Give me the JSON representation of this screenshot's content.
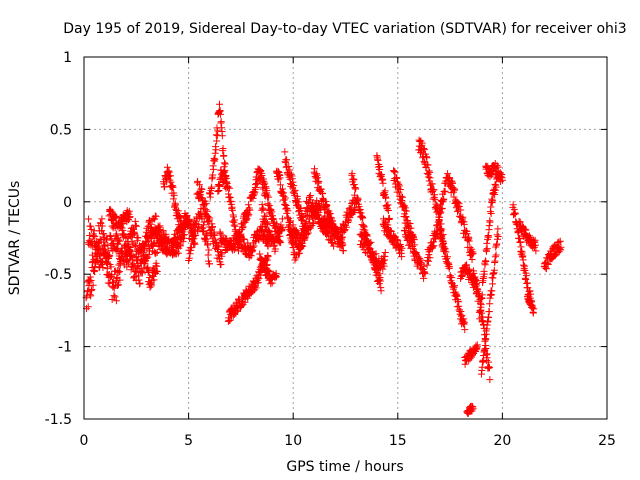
{
  "chart_data": {
    "type": "scatter",
    "title": "Day 195 of 2019, Sidereal Day-to-day VTEC variation (SDTVAR) for receiver ohi3",
    "xlabel": "GPS time / hours",
    "ylabel": "SDTVAR / TECUs",
    "xlim": [
      0,
      25
    ],
    "ylim": [
      -1.5,
      1
    ],
    "xticks": [
      0,
      5,
      10,
      15,
      20,
      25
    ],
    "xtick_labels": [
      "0",
      "5",
      "10",
      "15",
      "20",
      "25"
    ],
    "yticks": [
      1,
      0.5,
      0,
      -0.5,
      -1,
      -1.5
    ],
    "ytick_labels": [
      "1",
      "0.5",
      "0",
      "-0.5",
      "-1",
      "-1.5"
    ],
    "grid": true,
    "marker": "+",
    "color": "#ff0000",
    "series": [
      {
        "name": "SDTVAR",
        "arcs": [
          {
            "t0": 0.1,
            "t1": 1.8,
            "y": [
              -0.7,
              -0.6,
              -0.45,
              -0.3,
              -0.2,
              -0.35,
              -0.5,
              -0.6,
              -0.55,
              -0.4
            ],
            "jitter": 0.12
          },
          {
            "t0": 0.2,
            "t1": 2.5,
            "y": [
              -0.2,
              -0.3,
              -0.4,
              -0.35,
              -0.25,
              -0.3,
              -0.4,
              -0.3,
              -0.2
            ],
            "jitter": 0.1
          },
          {
            "t0": 1.2,
            "t1": 2.2,
            "y": [
              -0.08,
              -0.12,
              -0.15,
              -0.1,
              -0.1
            ],
            "jitter": 0.04
          },
          {
            "t0": 1.8,
            "t1": 3.5,
            "y": [
              -0.2,
              -0.35,
              -0.45,
              -0.5,
              -0.35,
              -0.25,
              -0.3
            ],
            "jitter": 0.08
          },
          {
            "t0": 2.5,
            "t1": 4.0,
            "y": [
              -0.3,
              -0.35,
              -0.2,
              -0.15,
              -0.25,
              -0.3
            ],
            "jitter": 0.07
          },
          {
            "t0": 3.0,
            "t1": 3.5,
            "y": [
              -0.45,
              -0.55,
              -0.5,
              -0.45
            ],
            "jitter": 0.05
          },
          {
            "t0": 3.5,
            "t1": 4.8,
            "y": [
              -0.25,
              -0.3,
              -0.3,
              -0.35,
              -0.3,
              -0.2
            ],
            "jitter": 0.05
          },
          {
            "t0": 3.8,
            "t1": 5.0,
            "y": [
              0.1,
              0.2,
              0.1,
              -0.05,
              -0.15,
              -0.2,
              -0.1
            ],
            "jitter": 0.05
          },
          {
            "t0": 4.2,
            "t1": 5.3,
            "y": [
              -0.3,
              -0.25,
              -0.2,
              -0.1,
              -0.15,
              -0.3
            ],
            "jitter": 0.05
          },
          {
            "t0": 5.0,
            "t1": 6.0,
            "y": [
              -0.35,
              -0.2,
              -0.15,
              -0.1,
              -0.2,
              -0.4
            ],
            "jitter": 0.07
          },
          {
            "t0": 5.4,
            "t1": 6.6,
            "y": [
              0.1,
              0.05,
              -0.05,
              -0.15,
              -0.25,
              -0.35,
              -0.4
            ],
            "jitter": 0.06
          },
          {
            "t0": 6.0,
            "t1": 6.8,
            "y": [
              0.05,
              0.15,
              0.3,
              0.45,
              0.65,
              0.5,
              0.3,
              0.15
            ],
            "jitter": 0.05
          },
          {
            "t0": 6.4,
            "t1": 7.4,
            "y": [
              0.05,
              0.2,
              0.15,
              0.1,
              -0.05,
              -0.2,
              -0.3
            ],
            "jitter": 0.05
          },
          {
            "t0": 6.5,
            "t1": 8.8,
            "y": [
              -0.25,
              -0.3,
              -0.3,
              -0.25,
              -0.3,
              -0.35,
              -0.25,
              -0.2,
              -0.3
            ],
            "jitter": 0.05
          },
          {
            "t0": 6.9,
            "t1": 8.8,
            "y": [
              -0.8,
              -0.75,
              -0.7,
              -0.65,
              -0.6,
              -0.55,
              -0.45,
              -0.4
            ],
            "jitter": 0.04
          },
          {
            "t0": 7.4,
            "t1": 8.2,
            "y": [
              -0.25,
              -0.15,
              -0.1,
              -0.05,
              0.05,
              0.1
            ],
            "jitter": 0.04
          },
          {
            "t0": 8.2,
            "t1": 9.4,
            "y": [
              0.15,
              0.2,
              0.1,
              0.0,
              -0.1,
              -0.2,
              -0.25
            ],
            "jitter": 0.05
          },
          {
            "t0": 8.5,
            "t1": 9.5,
            "y": [
              -0.05,
              -0.15,
              -0.25,
              -0.3,
              -0.25,
              -0.15
            ],
            "jitter": 0.05
          },
          {
            "t0": 8.4,
            "t1": 9.2,
            "y": [
              -0.4,
              -0.45,
              -0.5,
              -0.55,
              -0.5
            ],
            "jitter": 0.04
          },
          {
            "t0": 9.2,
            "t1": 10.0,
            "y": [
              0.2,
              0.15,
              0.05,
              -0.05,
              -0.2,
              -0.3
            ],
            "jitter": 0.05
          },
          {
            "t0": 9.6,
            "t1": 10.6,
            "y": [
              0.3,
              0.2,
              0.1,
              0.0,
              -0.1,
              -0.2
            ],
            "jitter": 0.05
          },
          {
            "t0": 9.8,
            "t1": 10.6,
            "y": [
              -0.15,
              -0.2,
              -0.25,
              -0.3,
              -0.2
            ],
            "jitter": 0.04
          },
          {
            "t0": 10.0,
            "t1": 12.0,
            "y": [
              -0.35,
              -0.3,
              -0.2,
              -0.1,
              -0.05,
              -0.15,
              -0.2,
              -0.25
            ],
            "jitter": 0.07
          },
          {
            "t0": 10.6,
            "t1": 11.8,
            "y": [
              -0.05,
              0.0,
              -0.05,
              -0.1,
              -0.15,
              -0.2,
              -0.1
            ],
            "jitter": 0.05
          },
          {
            "t0": 11.0,
            "t1": 12.4,
            "y": [
              0.2,
              0.1,
              0.0,
              -0.1,
              -0.2,
              -0.25,
              -0.3
            ],
            "jitter": 0.05
          },
          {
            "t0": 12.0,
            "t1": 13.0,
            "y": [
              -0.2,
              -0.25,
              -0.2,
              -0.1,
              -0.05,
              0.0
            ],
            "jitter": 0.05
          },
          {
            "t0": 12.8,
            "t1": 14.2,
            "y": [
              0.2,
              0.05,
              -0.05,
              -0.15,
              -0.25,
              -0.3,
              -0.4,
              -0.5,
              -0.6
            ],
            "jitter": 0.05
          },
          {
            "t0": 13.2,
            "t1": 14.4,
            "y": [
              -0.25,
              -0.3,
              -0.35,
              -0.4,
              -0.45,
              -0.4
            ],
            "jitter": 0.05
          },
          {
            "t0": 14.0,
            "t1": 14.6,
            "y": [
              0.3,
              0.2,
              0.1,
              0.0,
              -0.1
            ],
            "jitter": 0.04
          },
          {
            "t0": 14.3,
            "t1": 15.2,
            "y": [
              -0.15,
              -0.2,
              -0.25,
              -0.3,
              -0.35
            ],
            "jitter": 0.04
          },
          {
            "t0": 14.8,
            "t1": 15.8,
            "y": [
              0.2,
              0.1,
              0.0,
              -0.1,
              -0.2,
              -0.3
            ],
            "jitter": 0.05
          },
          {
            "t0": 15.3,
            "t1": 16.3,
            "y": [
              -0.15,
              -0.25,
              -0.3,
              -0.4,
              -0.45,
              -0.5
            ],
            "jitter": 0.05
          },
          {
            "t0": 16.0,
            "t1": 17.2,
            "y": [
              0.4,
              0.35,
              0.25,
              0.1,
              0.0,
              -0.15,
              -0.3
            ],
            "jitter": 0.05
          },
          {
            "t0": 16.4,
            "t1": 17.6,
            "y": [
              -0.4,
              -0.3,
              -0.2,
              0.0,
              0.15,
              0.1
            ],
            "jitter": 0.05
          },
          {
            "t0": 17.0,
            "t1": 18.2,
            "y": [
              -0.2,
              -0.3,
              -0.4,
              -0.5,
              -0.6,
              -0.7,
              -0.8,
              -0.85
            ],
            "jitter": 0.04
          },
          {
            "t0": 17.6,
            "t1": 18.6,
            "y": [
              0.1,
              0.0,
              -0.1,
              -0.2,
              -0.3,
              -0.4
            ],
            "jitter": 0.05
          },
          {
            "t0": 18.0,
            "t1": 18.8,
            "y": [
              -0.5,
              -0.45,
              -0.5,
              -0.55,
              -0.6
            ],
            "jitter": 0.04
          },
          {
            "t0": 18.2,
            "t1": 18.8,
            "y": [
              -1.1,
              -1.05,
              -1.0
            ],
            "jitter": 0.03
          },
          {
            "t0": 18.3,
            "t1": 18.6,
            "y": [
              -1.45,
              -1.42
            ],
            "jitter": 0.02
          },
          {
            "t0": 18.6,
            "t1": 19.4,
            "y": [
              -0.5,
              -0.6,
              -0.7,
              -0.85,
              -1.05,
              -1.2
            ],
            "jitter": 0.04
          },
          {
            "t0": 18.9,
            "t1": 19.8,
            "y": [
              -0.8,
              -0.6,
              -0.4,
              -0.2,
              0.0,
              0.1,
              0.2
            ],
            "jitter": 0.04
          },
          {
            "t0": 19.0,
            "t1": 19.8,
            "y": [
              -1.2,
              -1.0,
              -0.8,
              -0.6,
              -0.4,
              -0.2
            ],
            "jitter": 0.04
          },
          {
            "t0": 19.2,
            "t1": 20.0,
            "y": [
              0.25,
              0.2,
              0.25,
              0.2,
              0.15
            ],
            "jitter": 0.04
          },
          {
            "t0": 20.5,
            "t1": 21.4,
            "y": [
              -0.05,
              -0.15,
              -0.3,
              -0.45,
              -0.6,
              -0.7
            ],
            "jitter": 0.04
          },
          {
            "t0": 20.8,
            "t1": 21.6,
            "y": [
              -0.15,
              -0.2,
              -0.25,
              -0.3,
              -0.3
            ],
            "jitter": 0.04
          },
          {
            "t0": 21.2,
            "t1": 21.5,
            "y": [
              -0.65,
              -0.7,
              -0.75
            ],
            "jitter": 0.03
          },
          {
            "t0": 22.0,
            "t1": 22.8,
            "y": [
              -0.45,
              -0.4,
              -0.35,
              -0.32,
              -0.3
            ],
            "jitter": 0.04
          }
        ]
      }
    ]
  }
}
